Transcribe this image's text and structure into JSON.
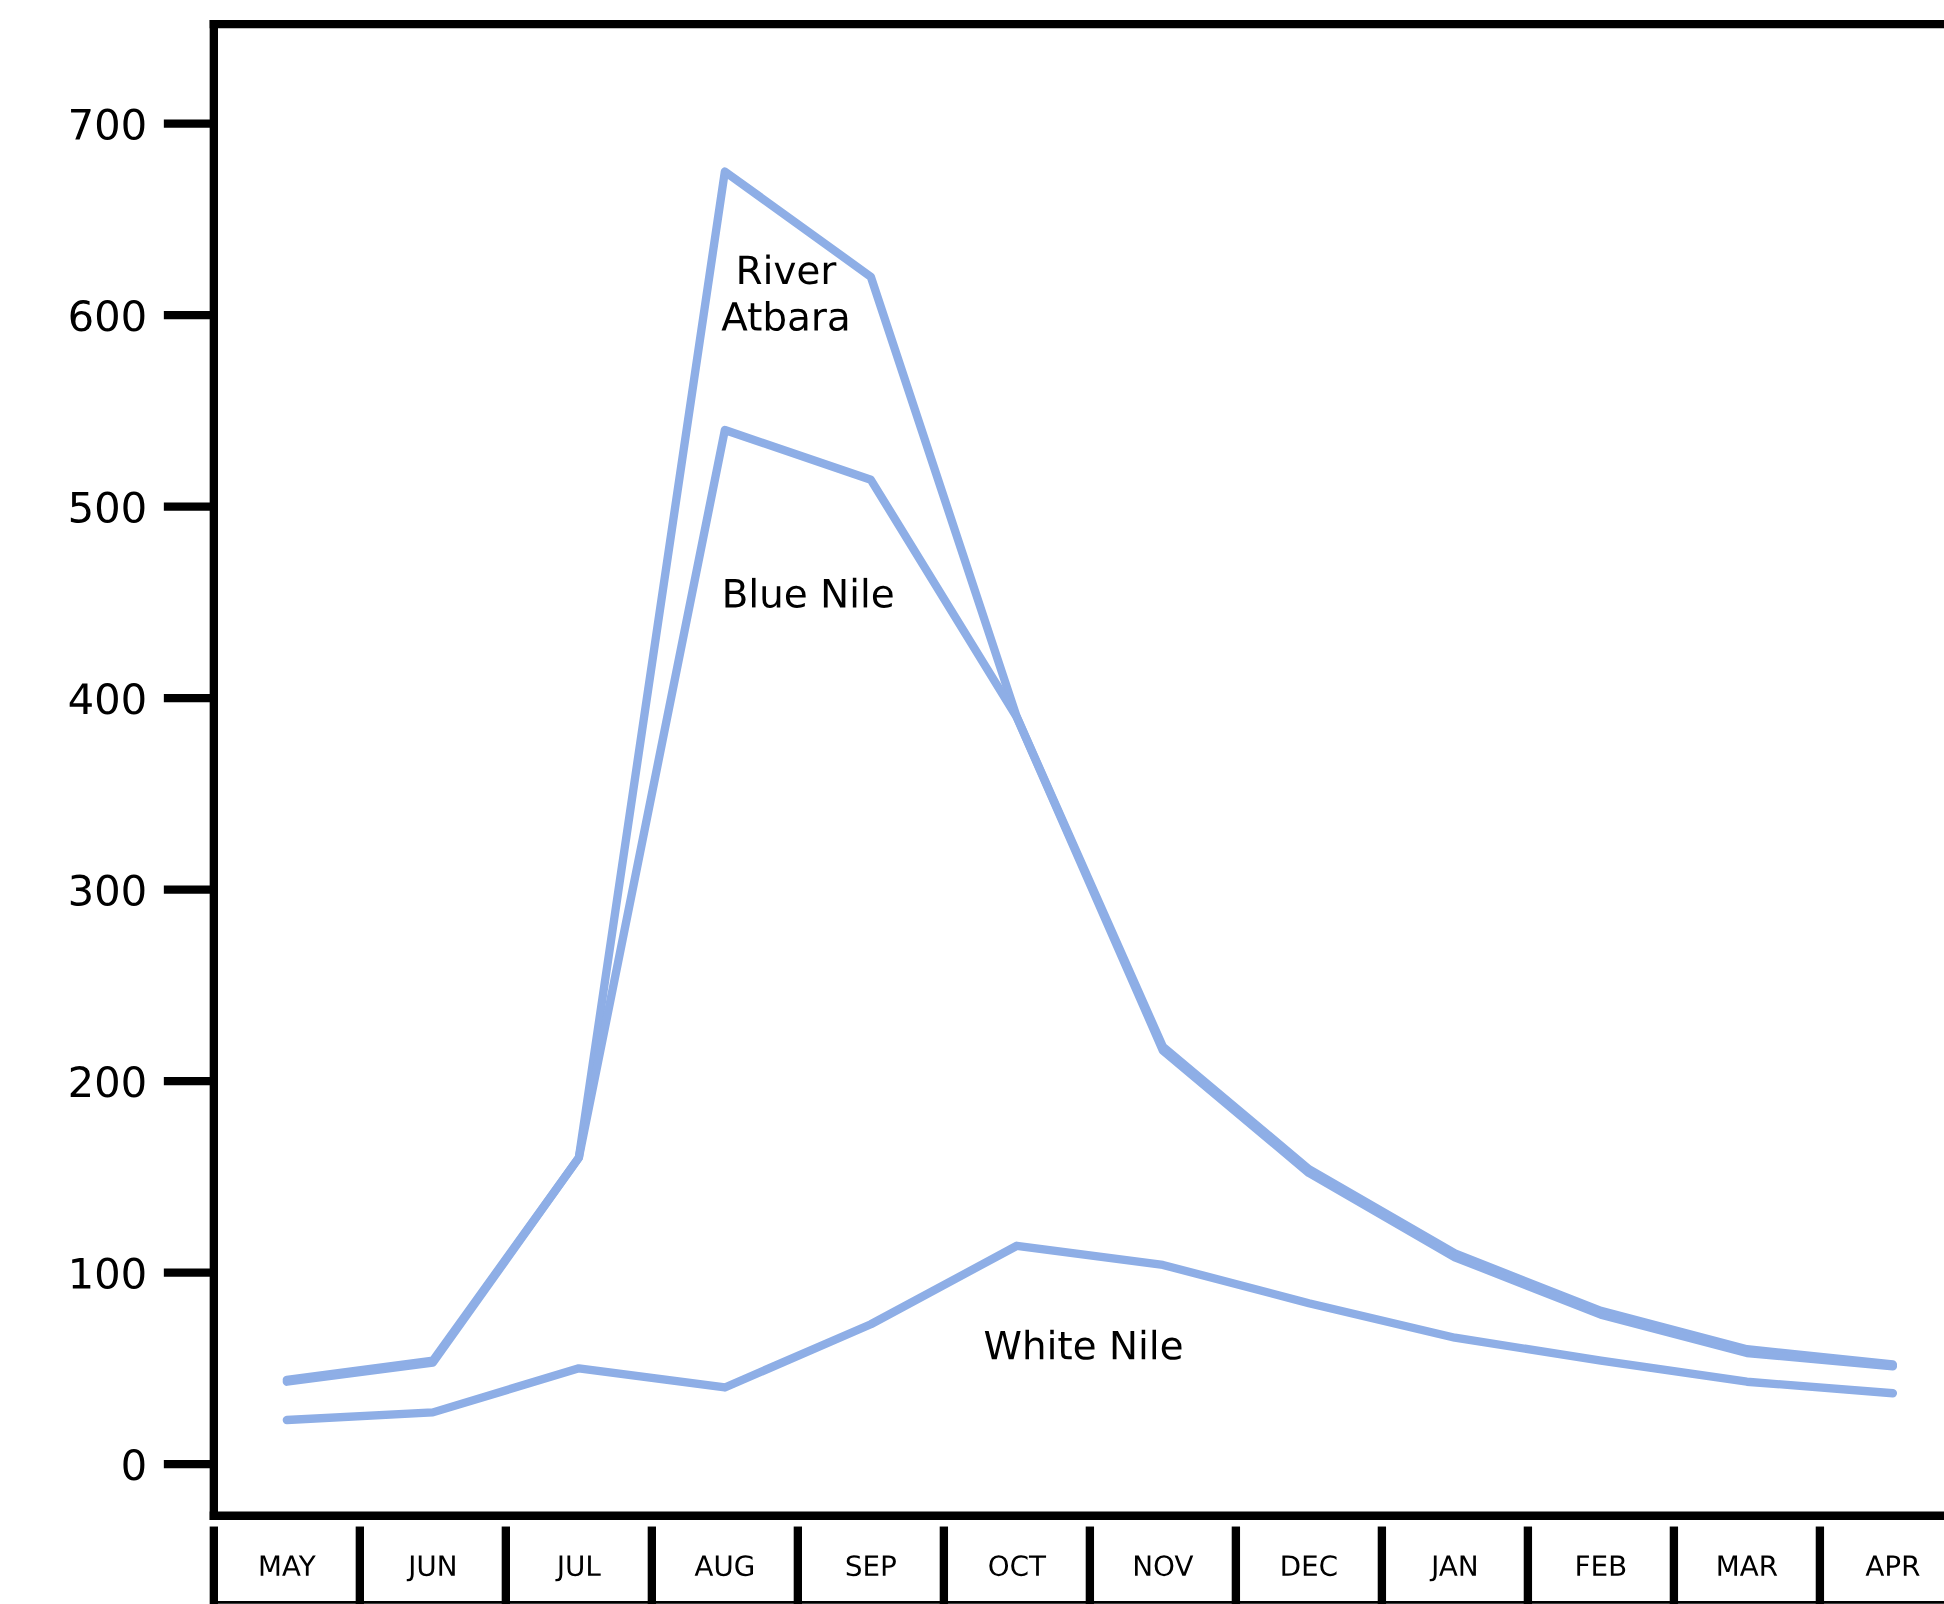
{
  "chart_data": {
    "type": "line",
    "categories": [
      "MAY",
      "JUN",
      "JUL",
      "AUG",
      "SEP",
      "OCT",
      "NOV",
      "DEC",
      "JAN",
      "FEB",
      "MAR",
      "APR"
    ],
    "ylim": [
      -27,
      752
    ],
    "yticks": [
      0,
      100,
      200,
      300,
      400,
      500,
      600,
      700
    ],
    "marker": "none",
    "line_style": "solid",
    "series": [
      {
        "name": "River\nAtbara",
        "color": "#8eaee6",
        "values": [
          44,
          54,
          160,
          675,
          620,
          390,
          218,
          154,
          110,
          80,
          60,
          52
        ]
      },
      {
        "name": "Blue Nile",
        "color": "#8eaee6",
        "values": [
          43,
          53,
          160,
          540,
          514,
          390,
          216,
          152,
          108,
          78,
          58,
          51
        ]
      },
      {
        "name": "White Nile",
        "color": "#8eaee6",
        "values": [
          23,
          27,
          50,
          40,
          73,
          114,
          104,
          84,
          66,
          54,
          43,
          37
        ]
      }
    ]
  }
}
